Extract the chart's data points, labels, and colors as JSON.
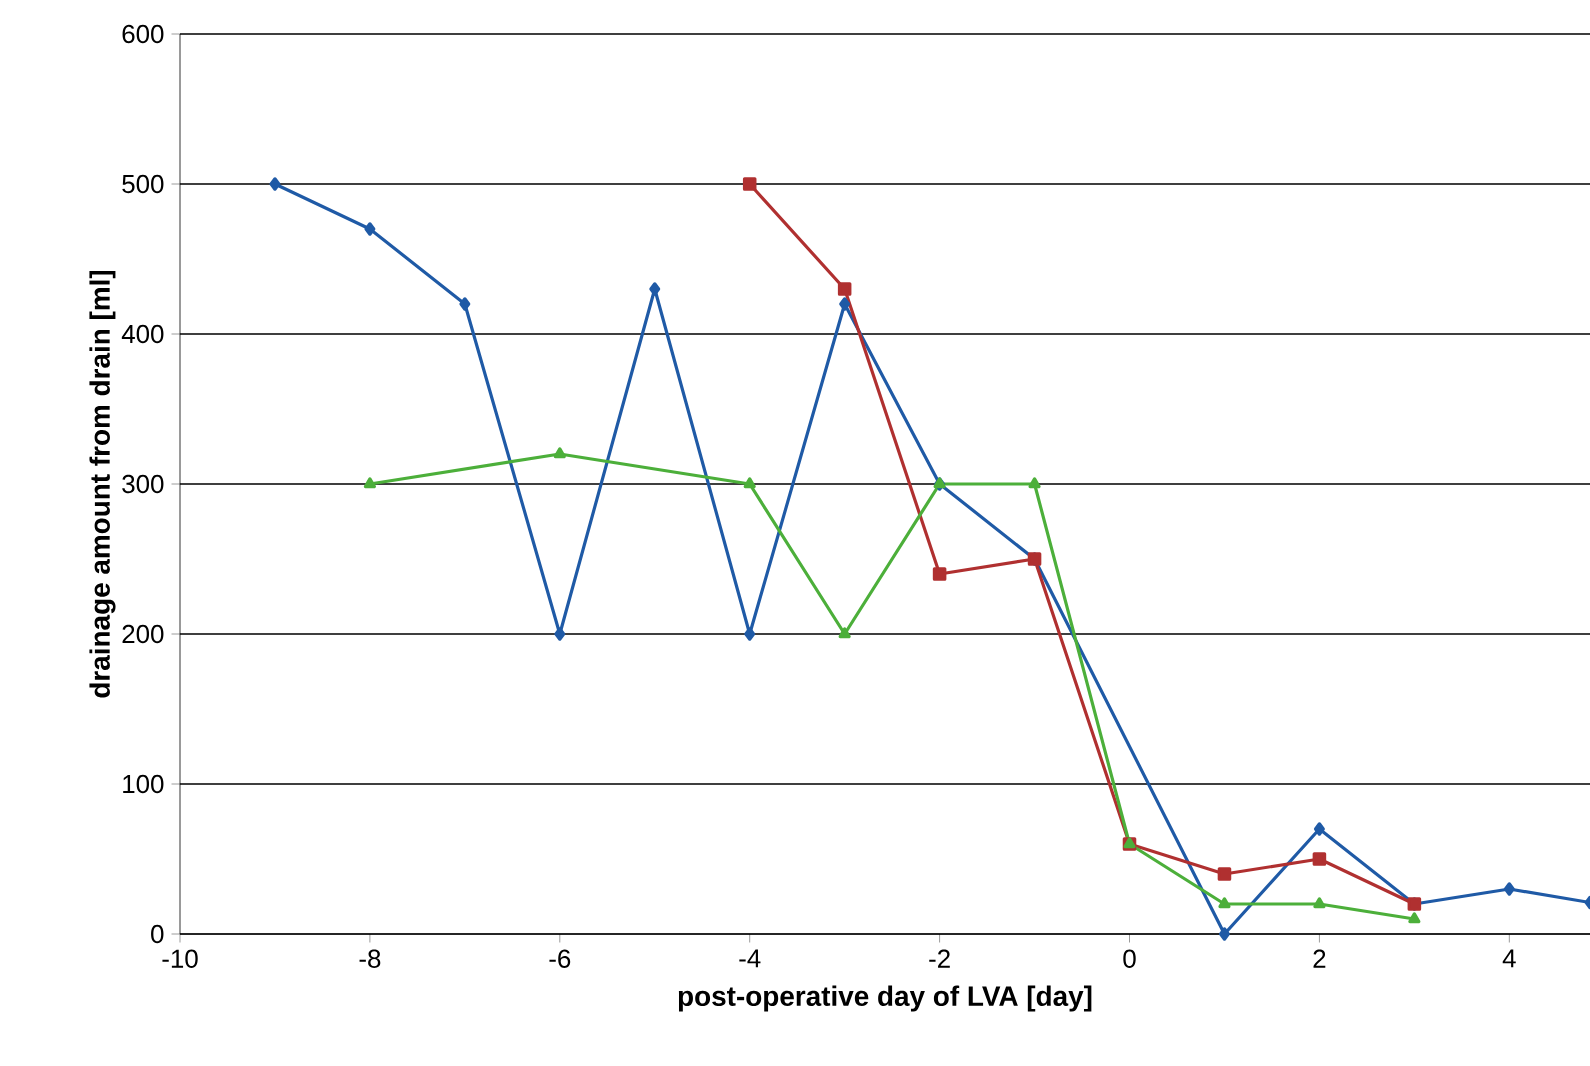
{
  "chart_data": {
    "type": "line",
    "xlabel": "post-operative day of LVA [day]",
    "ylabel": "drainage amount from drain [ml]",
    "xlim": [
      -10,
      4.85
    ],
    "xticks": [
      -10,
      -8,
      -6,
      -4,
      -2,
      0,
      2,
      4
    ],
    "ylim": [
      0,
      600
    ],
    "yticks": [
      0,
      100,
      200,
      300,
      400,
      500,
      600
    ],
    "grid": "y",
    "line_style": "solid",
    "series": [
      {
        "color": "#1f5aa6",
        "marker": "diamond",
        "x": [
          -9,
          -8,
          -7,
          -6,
          -5,
          -4,
          -3,
          -2,
          -1,
          1,
          2,
          3,
          4,
          4.85
        ],
        "values": [
          500,
          470,
          420,
          200,
          430,
          200,
          420,
          300,
          250,
          0,
          70,
          20,
          30,
          21
        ]
      },
      {
        "color": "#b03030",
        "marker": "square",
        "x": [
          -4,
          -3,
          -2,
          -1,
          0,
          1,
          2,
          3
        ],
        "values": [
          500,
          430,
          240,
          250,
          60,
          40,
          50,
          20
        ]
      },
      {
        "color": "#4caf3a",
        "marker": "triangle",
        "x": [
          -8,
          -6,
          -4,
          -3,
          -2,
          -1,
          0,
          1,
          2,
          3
        ],
        "values": [
          300,
          320,
          300,
          200,
          300,
          300,
          60,
          20,
          20,
          10
        ]
      }
    ]
  }
}
